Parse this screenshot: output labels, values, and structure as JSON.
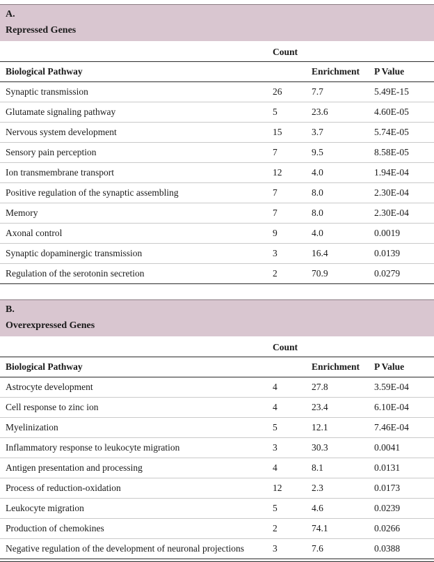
{
  "colors": {
    "band_bg": "#d9c6d0",
    "rule_dark": "#2b2b2b",
    "rule_light": "#c9c9c9"
  },
  "panelA": {
    "label": "A.",
    "title": "Repressed Genes",
    "count_header": "Count",
    "columns": {
      "pathway": "Biological Pathway",
      "enrichment": "Enrichment",
      "pvalue": "P Value"
    },
    "rows": [
      {
        "pathway": "Synaptic transmission",
        "count": "26",
        "enrichment": "7.7",
        "pvalue": "5.49E-15"
      },
      {
        "pathway": "Glutamate signaling pathway",
        "count": "5",
        "enrichment": "23.6",
        "pvalue": "4.60E-05"
      },
      {
        "pathway": "Nervous system development",
        "count": "15",
        "enrichment": "3.7",
        "pvalue": "5.74E-05"
      },
      {
        "pathway": "Sensory pain perception",
        "count": "7",
        "enrichment": "9.5",
        "pvalue": "8.58E-05"
      },
      {
        "pathway": "Ion transmembrane transport",
        "count": "12",
        "enrichment": "4.0",
        "pvalue": "1.94E-04"
      },
      {
        "pathway": "Positive regulation of the synaptic assembling",
        "count": "7",
        "enrichment": "8.0",
        "pvalue": "2.30E-04"
      },
      {
        "pathway": "Memory",
        "count": "7",
        "enrichment": "8.0",
        "pvalue": "2.30E-04"
      },
      {
        "pathway": "Axonal control",
        "count": "9",
        "enrichment": "4.0",
        "pvalue": "0.0019"
      },
      {
        "pathway": "Synaptic dopaminergic transmission",
        "count": "3",
        "enrichment": "16.4",
        "pvalue": "0.0139"
      },
      {
        "pathway": "Regulation of the serotonin secretion",
        "count": "2",
        "enrichment": "70.9",
        "pvalue": "0.0279"
      }
    ]
  },
  "panelB": {
    "label": "B.",
    "title": "Overexpressed Genes",
    "count_header": "Count",
    "columns": {
      "pathway": "Biological Pathway",
      "enrichment": "Enrichment",
      "pvalue": "P Value"
    },
    "rows": [
      {
        "pathway": "Astrocyte development",
        "count": "4",
        "enrichment": "27.8",
        "pvalue": "3.59E-04"
      },
      {
        "pathway": "Cell response to zinc ion",
        "count": "4",
        "enrichment": "23.4",
        "pvalue": "6.10E-04"
      },
      {
        "pathway": "Myelinization",
        "count": "5",
        "enrichment": "12.1",
        "pvalue": "7.46E-04"
      },
      {
        "pathway": "Inflammatory response to leukocyte migration",
        "count": "3",
        "enrichment": "30.3",
        "pvalue": "0.0041"
      },
      {
        "pathway": "Antigen presentation and processing",
        "count": "4",
        "enrichment": "8.1",
        "pvalue": "0.0131"
      },
      {
        "pathway": "Process of reduction-oxidation",
        "count": "12",
        "enrichment": "2.3",
        "pvalue": "0.0173"
      },
      {
        "pathway": "Leukocyte migration",
        "count": "5",
        "enrichment": "4.6",
        "pvalue": "0.0239"
      },
      {
        "pathway": "Production of chemokines",
        "count": "2",
        "enrichment": "74.1",
        "pvalue": "0.0266"
      },
      {
        "pathway": "Negative regulation of the development of neuronal projections",
        "count": "3",
        "enrichment": "7.6",
        "pvalue": "0.0388"
      }
    ]
  }
}
